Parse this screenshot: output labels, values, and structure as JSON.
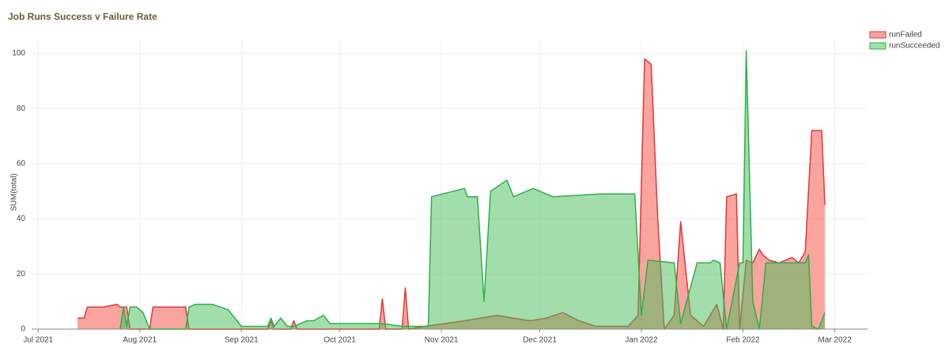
{
  "chart_data": {
    "type": "area",
    "title": "Job Runs Success v Failure Rate",
    "y_label": "SUM(total)",
    "legend": "top-right",
    "grid": true,
    "xlim": [
      -2,
      253
    ],
    "xticks": [
      {
        "value": 0,
        "label": "Jul 2021"
      },
      {
        "value": 31,
        "label": "Aug 2021"
      },
      {
        "value": 62,
        "label": "Sep 2021"
      },
      {
        "value": 92,
        "label": "Oct 2021"
      },
      {
        "value": 123,
        "label": "Nov 2021"
      },
      {
        "value": 153,
        "label": "Dec 2021"
      },
      {
        "value": 184,
        "label": "Jan 2022"
      },
      {
        "value": 215,
        "label": "Feb 2022"
      },
      {
        "value": 243,
        "label": "Mar 2022"
      }
    ],
    "ylim": [
      0,
      105
    ],
    "yticks": [
      0,
      20,
      40,
      60,
      80,
      100
    ],
    "series": [
      {
        "name": "runFailed",
        "color": "#e0383a",
        "fill": "rgba(245,90,80,0.55)",
        "x": [
          12,
          14,
          15,
          20,
          24,
          25,
          27,
          28,
          34,
          35,
          40,
          45,
          46,
          60,
          70,
          71,
          72,
          77,
          78,
          79,
          104,
          105,
          106,
          111,
          112,
          113,
          118,
          130,
          135,
          140,
          145,
          150,
          155,
          160,
          165,
          170,
          180,
          183,
          185,
          187,
          189,
          191,
          194,
          196,
          199,
          203,
          207,
          209,
          210,
          213,
          214,
          216,
          218,
          220,
          221,
          223,
          226,
          230,
          232,
          234,
          236,
          239,
          240
        ],
        "values": [
          4,
          4,
          8,
          8,
          9,
          8,
          8,
          0,
          0,
          8,
          8,
          8,
          0,
          0,
          0,
          3,
          0,
          0,
          3,
          0,
          0,
          11,
          0,
          0,
          15,
          0,
          1,
          3,
          4,
          5,
          4,
          3,
          4,
          6,
          3,
          1,
          1,
          5,
          98,
          96,
          40,
          0,
          5,
          39,
          5,
          1,
          9,
          0,
          48,
          49,
          0,
          25,
          24,
          29,
          27,
          25,
          24,
          26,
          24,
          28,
          72,
          72,
          45
        ]
      },
      {
        "name": "runSucceeded",
        "color": "#2bb04a",
        "fill": "rgba(70,190,90,0.5)",
        "x": [
          25,
          26,
          27,
          28,
          30,
          32,
          34,
          35,
          45,
          46,
          48,
          53,
          58,
          62,
          70,
          71,
          72,
          74,
          76,
          78,
          82,
          84,
          87,
          89,
          98,
          105,
          111,
          118,
          119,
          120,
          130,
          131,
          134,
          136,
          138,
          143,
          145,
          151,
          157,
          171,
          182,
          184,
          186,
          194,
          196,
          201,
          205,
          206,
          208,
          210,
          214,
          215,
          216,
          218,
          220,
          222,
          234,
          235,
          236,
          238,
          240
        ],
        "values": [
          0,
          8,
          1,
          8,
          8,
          6,
          0,
          0,
          0,
          8,
          9,
          9,
          7,
          1,
          1,
          4,
          1,
          4,
          1,
          1,
          3,
          3,
          5,
          2,
          2,
          2,
          1,
          1,
          1,
          48,
          51,
          48,
          48,
          10,
          50,
          54,
          48,
          51,
          48,
          49,
          49,
          5,
          25,
          24,
          2,
          24,
          24,
          25,
          24,
          0,
          24,
          24,
          101,
          10,
          0,
          24,
          24,
          27,
          1,
          0,
          6
        ]
      }
    ]
  }
}
